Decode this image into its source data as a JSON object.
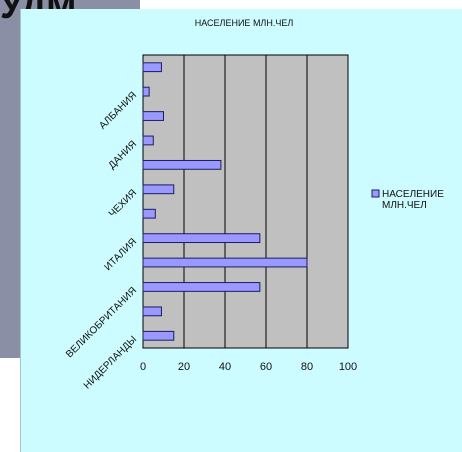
{
  "slide": {
    "heading_fragment": "УДМ"
  },
  "chart_data": {
    "type": "bar",
    "orientation": "horizontal",
    "title": "НАСЕЛЕНИЕ МЛН.ЧЕЛ",
    "categories": [
      "НИДЕРЛАНДЫ",
      "",
      "ВЕЛИКОБРИТАНИЯ",
      "",
      "ИТАЛИЯ",
      "",
      "ЧЕХИЯ",
      "",
      "ДАНИЯ",
      "",
      "АЛБАНИЯ",
      ""
    ],
    "series": [
      {
        "name": "НАСЕЛЕНИЕ МЛН.ЧЕЛ",
        "values": [
          15,
          9,
          57,
          80,
          57,
          6,
          15,
          38,
          5,
          10,
          3,
          9
        ]
      }
    ],
    "xlim": [
      0,
      100
    ],
    "xticks": [
      0,
      20,
      40,
      60,
      80,
      100
    ],
    "grid": true,
    "legend_position": "right",
    "colors": {
      "bar_fill": "#9999ff",
      "bar_stroke": "#1c1c66",
      "plot_bg": "#c0c0c0",
      "panel_bg": "#ccfcff",
      "gridline": "#000000"
    }
  }
}
